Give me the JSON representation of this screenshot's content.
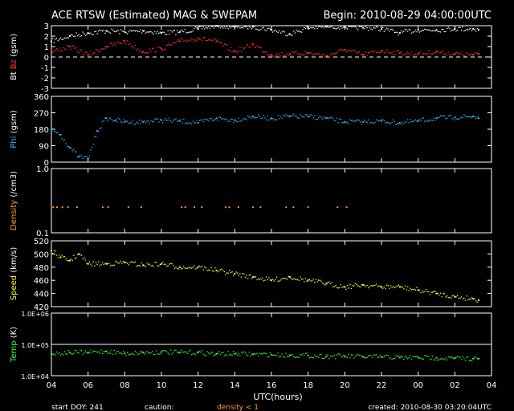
{
  "header": {
    "title": "ACE RTSW (Estimated) MAG & SWEPAM",
    "begin": "Begin: 2010-08-29 04:00:00UTC"
  },
  "footer": {
    "start_doy": "start DOY: 241",
    "caution_label": "caution:",
    "caution_text": "density < 1",
    "created": "created: 2010-08-30 03:20:04UTC"
  },
  "x_axis": {
    "label": "UTC(hours)",
    "ticks": [
      "04",
      "06",
      "08",
      "10",
      "12",
      "14",
      "16",
      "18",
      "20",
      "22",
      "00",
      "02",
      "04"
    ]
  },
  "colors": {
    "bt": "#ffffff",
    "bz": "#ff3333",
    "phi": "#33b5ff",
    "density": "#ff9933",
    "speed": "#ffff33",
    "temp": "#33ff33",
    "frame": "#ffffff",
    "background": "#000000"
  },
  "chart_data": [
    {
      "type": "scatter",
      "panel": "mag-field",
      "ylabel_parts": [
        "Bt",
        "Bz",
        "(gsm)"
      ],
      "ylim": [
        -3,
        3
      ],
      "ytick_values": [
        3,
        2,
        1,
        0,
        -1,
        -2,
        -3
      ],
      "ytick_labels": [
        "3",
        "2",
        "1",
        "0",
        "-1",
        "-2",
        "-3"
      ],
      "zero_line": true,
      "series": [
        {
          "name": "Bt",
          "x_hours": [
            0,
            1,
            2,
            3,
            4,
            5,
            6,
            7,
            8,
            9,
            10,
            11,
            12,
            13,
            14,
            15,
            16,
            17,
            18,
            19,
            20,
            21,
            22,
            23,
            23.3
          ],
          "values": [
            1.5,
            2.0,
            2.3,
            2.5,
            2.4,
            2.5,
            2.3,
            2.4,
            2.7,
            3.0,
            2.9,
            2.9,
            2.6,
            2.2,
            2.8,
            2.9,
            2.9,
            2.8,
            2.7,
            2.3,
            2.6,
            2.6,
            2.7,
            2.7,
            2.6
          ]
        },
        {
          "name": "Bz",
          "x_hours": [
            0,
            1,
            2,
            3,
            4,
            5,
            6,
            7,
            8,
            9,
            10,
            11,
            12,
            13,
            14,
            15,
            16,
            17,
            18,
            19,
            20,
            21,
            22,
            23,
            23.3
          ],
          "values": [
            0.5,
            1.0,
            0.2,
            1.0,
            1.5,
            0.5,
            0.8,
            1.5,
            1.8,
            1.5,
            0.5,
            1.2,
            0.2,
            0.3,
            0.4,
            0.1,
            0.7,
            0.2,
            0.6,
            0.4,
            0.3,
            0.5,
            0.3,
            0.2,
            0.3
          ]
        }
      ]
    },
    {
      "type": "scatter",
      "panel": "phi",
      "ylabel_parts": [
        "Phi",
        "(gsm)"
      ],
      "ylim": [
        0,
        360
      ],
      "ytick_values": [
        360,
        270,
        180,
        90,
        0
      ],
      "ytick_labels": [
        "360",
        "270",
        "180",
        "90",
        "0"
      ],
      "series": [
        {
          "name": "Phi",
          "x_hours": [
            0,
            0.5,
            1,
            1.5,
            2,
            2.5,
            3,
            3.5,
            4,
            5,
            6,
            7,
            8,
            9,
            10,
            11,
            12,
            13,
            14,
            15,
            16,
            17,
            18,
            19,
            20,
            21,
            22,
            23,
            23.3
          ],
          "values": [
            180,
            150,
            80,
            30,
            20,
            170,
            240,
            230,
            220,
            220,
            230,
            225,
            215,
            240,
            230,
            250,
            240,
            250,
            250,
            240,
            220,
            220,
            225,
            215,
            225,
            240,
            245,
            250,
            240
          ]
        }
      ]
    },
    {
      "type": "scatter",
      "panel": "density",
      "ylabel_parts": [
        "Density",
        "(/cm3)"
      ],
      "scale": "log",
      "ylim": [
        0.1,
        1.0
      ],
      "ytick_values": [
        1.0,
        0.1
      ],
      "ytick_labels": [
        "1.0",
        "0.1"
      ],
      "series": [
        {
          "name": "Density",
          "x_hours": [
            0.1,
            0.3,
            0.6,
            0.9,
            1.4,
            2.8,
            3.1,
            4.2,
            4.9,
            7.1,
            7.3,
            7.8,
            8.2,
            9.5,
            9.7,
            10.2,
            11.0,
            11.4,
            12.8,
            13.2,
            14.0,
            15.6,
            16.1
          ],
          "values": [
            0.25,
            0.25,
            0.25,
            0.25,
            0.25,
            0.25,
            0.25,
            0.25,
            0.25,
            0.25,
            0.25,
            0.25,
            0.25,
            0.25,
            0.25,
            0.25,
            0.25,
            0.25,
            0.25,
            0.25,
            0.25,
            0.25,
            0.25
          ]
        }
      ]
    },
    {
      "type": "scatter",
      "panel": "speed",
      "ylabel_parts": [
        "Speed",
        "(km/s)"
      ],
      "ylim": [
        420,
        520
      ],
      "ytick_values": [
        520,
        500,
        480,
        460,
        440,
        420
      ],
      "ytick_labels": [
        "520",
        "500",
        "480",
        "460",
        "440",
        "420"
      ],
      "series": [
        {
          "name": "Speed",
          "x_hours": [
            0,
            0.5,
            1,
            1.5,
            2,
            3,
            4,
            5,
            6,
            7,
            8,
            9,
            10,
            11,
            12,
            13,
            14,
            15,
            16,
            17,
            18,
            19,
            20,
            21,
            22,
            23,
            23.3
          ],
          "values": [
            505,
            495,
            490,
            500,
            485,
            485,
            487,
            483,
            485,
            480,
            480,
            475,
            470,
            465,
            460,
            465,
            460,
            455,
            450,
            453,
            450,
            450,
            445,
            440,
            435,
            432,
            430
          ]
        }
      ]
    },
    {
      "type": "scatter",
      "panel": "temp",
      "ylabel_parts": [
        "Temp",
        "(K)"
      ],
      "scale": "log",
      "ylim": [
        10000,
        1000000
      ],
      "ytick_values": [
        1000000,
        100000,
        10000
      ],
      "ytick_labels": [
        "1.0E+06",
        "1.0E+05",
        "1.0E+04"
      ],
      "reference_line": 100000,
      "series": [
        {
          "name": "Temp",
          "x_hours": [
            0,
            1,
            2,
            3,
            4,
            5,
            6,
            7,
            8,
            9,
            10,
            11,
            12,
            13,
            14,
            15,
            16,
            17,
            18,
            19,
            20,
            21,
            22,
            23,
            23.3
          ],
          "values": [
            50000,
            55000,
            55000,
            60000,
            52000,
            55000,
            57000,
            55000,
            55000,
            50000,
            50000,
            48000,
            47000,
            45000,
            44000,
            42000,
            42000,
            40000,
            40000,
            38000,
            38000,
            37000,
            36000,
            35000,
            35000
          ]
        }
      ]
    }
  ]
}
